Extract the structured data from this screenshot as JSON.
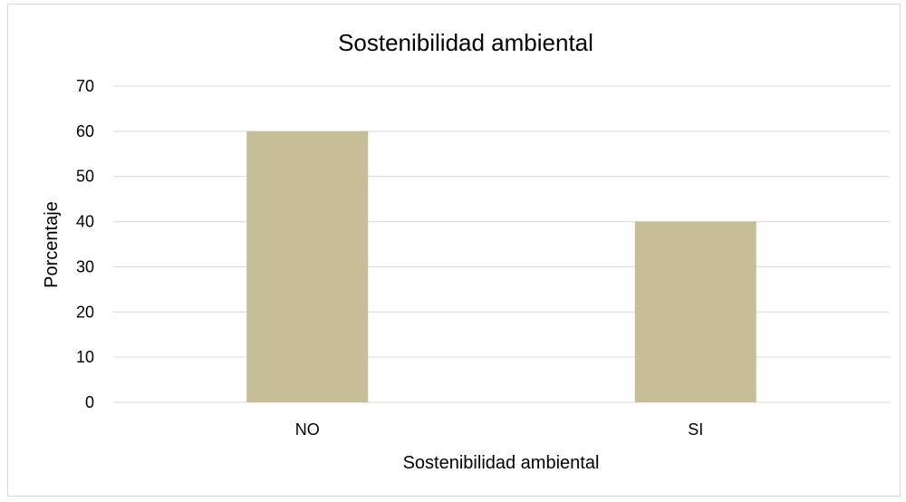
{
  "chart_data": {
    "type": "bar",
    "title": "Sostenibilidad ambiental",
    "xlabel": "Sostenibilidad ambiental",
    "ylabel": "Porcentaje",
    "categories": [
      "NO",
      "SI"
    ],
    "values": [
      60,
      40
    ],
    "ylim": [
      0,
      70
    ],
    "yticks": [
      "0",
      "10",
      "20",
      "30",
      "40",
      "50",
      "60",
      "70"
    ],
    "grid": true,
    "bar_color": "#c5be97",
    "gridline_color": "#d9d9d9"
  }
}
